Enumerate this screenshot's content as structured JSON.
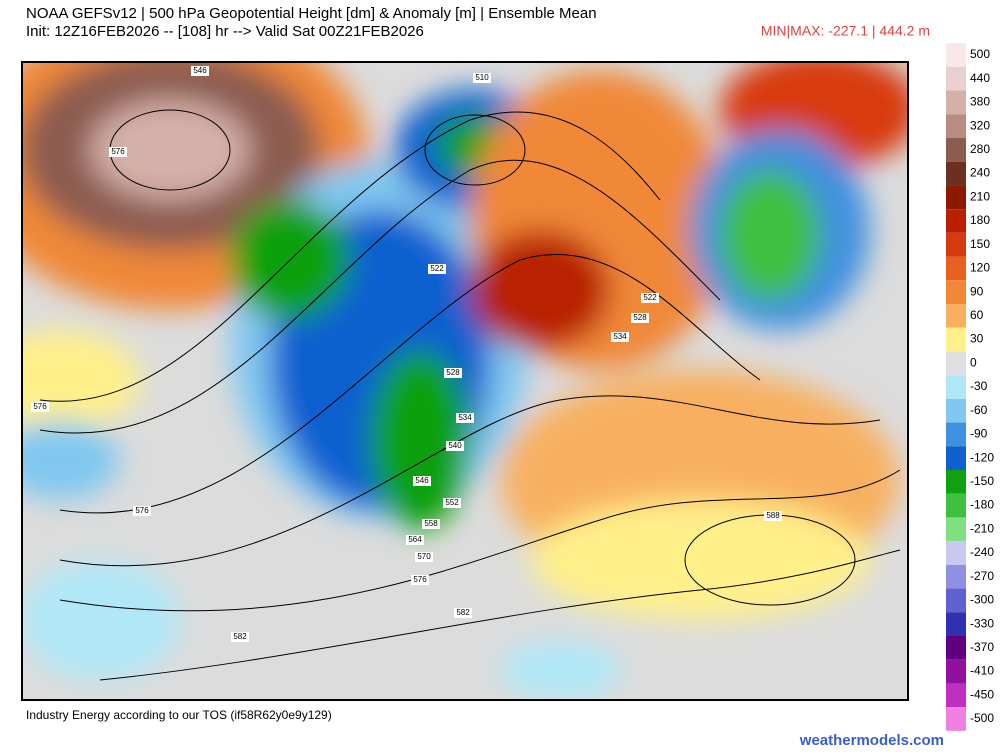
{
  "header": {
    "title": "NOAA GEFSv12 | 500 hPa Geopotential Height [dm] & Anomaly [m] | Ensemble Mean",
    "subtitle": "Init: 12Z16FEB2026 -- [108] hr --> Valid Sat 00Z21FEB2026",
    "minmax": "MIN|MAX: -227.1 | 444.2 m"
  },
  "colorbar": {
    "levels": [
      500,
      440,
      380,
      320,
      280,
      240,
      210,
      180,
      150,
      120,
      90,
      60,
      30,
      0,
      -30,
      -60,
      -90,
      -120,
      -150,
      -180,
      -210,
      -240,
      -270,
      -300,
      -330,
      -370,
      -410,
      -450,
      -500
    ],
    "colors": [
      "#f8e8e8",
      "#e8d0cc",
      "#d4b0a8",
      "#b88c80",
      "#8c5c50",
      "#6a3020",
      "#8b1a00",
      "#b82000",
      "#d83a10",
      "#e86020",
      "#f08838",
      "#f8b060",
      "#fff08a",
      "#e0e0e0",
      "#b0e8f8",
      "#80c8f0",
      "#4090e0",
      "#1060d0",
      "#10a010",
      "#40c040",
      "#80e080",
      "#c8c8f0",
      "#9090e0",
      "#6060d0",
      "#3030b0",
      "#600080",
      "#9010a0",
      "#c030c0",
      "#f080e0"
    ]
  },
  "map": {
    "contour_labels": [
      546,
      576,
      510,
      522,
      528,
      534,
      540,
      546,
      552,
      558,
      564,
      570,
      576,
      582,
      582,
      576,
      576,
      588,
      522,
      528,
      534
    ]
  },
  "footer": {
    "note": "Industry Energy according to our TOS (if58R62y0e9y129)",
    "watermark": "weathermodels.com"
  }
}
